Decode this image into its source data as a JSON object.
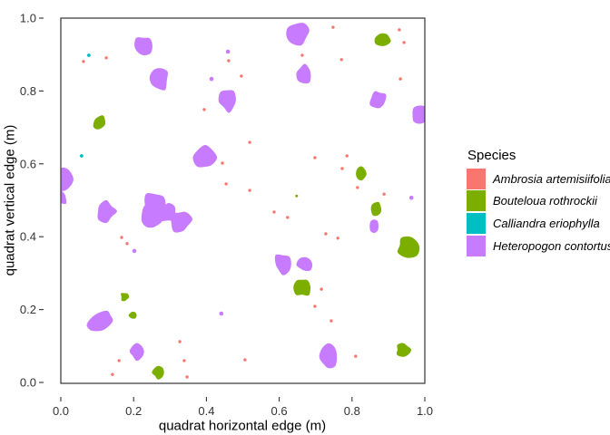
{
  "chart_data": {
    "type": "scatter",
    "title": "",
    "xlabel": "quadrat horizontal edge (m)",
    "ylabel": "quadrat vertical edge (m)",
    "xlim": [
      0,
      1
    ],
    "ylim": [
      0,
      1
    ],
    "grid": false,
    "legend_position": "right",
    "legend": {
      "title": "Species"
    },
    "axes": {
      "x_tick_values": [
        0.0,
        0.2,
        0.4,
        0.6,
        0.8,
        1.0
      ],
      "x_tick_labels": [
        "0.0",
        "0.2",
        "0.4",
        "0.6",
        "0.8",
        "1.0"
      ],
      "y_tick_values": [
        0.0,
        0.2,
        0.4,
        0.6,
        0.8,
        1.0
      ],
      "y_tick_labels": [
        "0.0",
        "0.2",
        "0.4",
        "0.6",
        "0.8",
        "1.0"
      ]
    },
    "species": [
      {
        "name": "Ambrosia artemisiifolia",
        "color": "#F8766D",
        "point_radius": 1.7,
        "points": [
          [
            0.062,
            0.881
          ],
          [
            0.125,
            0.891
          ],
          [
            0.461,
            0.883
          ],
          [
            0.496,
            0.841
          ],
          [
            0.748,
            0.975
          ],
          [
            0.93,
            0.968
          ],
          [
            0.943,
            0.933
          ],
          [
            0.663,
            0.898
          ],
          [
            0.771,
            0.886
          ],
          [
            0.933,
            0.833
          ],
          [
            0.394,
            0.749
          ],
          [
            0.519,
            0.659
          ],
          [
            0.444,
            0.602
          ],
          [
            0.454,
            0.545
          ],
          [
            0.698,
            0.617
          ],
          [
            0.786,
            0.622
          ],
          [
            0.773,
            0.587
          ],
          [
            0.815,
            0.535
          ],
          [
            0.519,
            0.527
          ],
          [
            0.888,
            0.517
          ],
          [
            0.586,
            0.468
          ],
          [
            0.623,
            0.453
          ],
          [
            0.728,
            0.408
          ],
          [
            0.761,
            0.396
          ],
          [
            0.167,
            0.398
          ],
          [
            0.182,
            0.381
          ],
          [
            0.716,
            0.256
          ],
          [
            0.698,
            0.209
          ],
          [
            0.743,
            0.169
          ],
          [
            0.327,
            0.112
          ],
          [
            0.16,
            0.06
          ],
          [
            0.339,
            0.06
          ],
          [
            0.506,
            0.062
          ],
          [
            0.81,
            0.072
          ],
          [
            0.142,
            0.022
          ],
          [
            0.347,
            0.015
          ]
        ],
        "patches": []
      },
      {
        "name": "Bouteloua rothrockii",
        "color": "#7CAE00",
        "point_radius": 1.5,
        "points": [
          [
            0.648,
            0.512
          ]
        ],
        "patches": [
          [
            0.885,
            0.94,
            0.021,
            0.016,
            -25,
            201
          ],
          [
            0.107,
            0.714,
            0.016,
            0.025,
            25,
            202
          ],
          [
            0.825,
            0.572,
            0.014,
            0.019,
            0,
            203
          ],
          [
            0.866,
            0.478,
            0.015,
            0.019,
            -15,
            204
          ],
          [
            0.955,
            0.373,
            0.031,
            0.026,
            10,
            205
          ],
          [
            0.663,
            0.261,
            0.021,
            0.025,
            0,
            206
          ],
          [
            0.175,
            0.234,
            0.011,
            0.012,
            0,
            207
          ],
          [
            0.197,
            0.184,
            0.011,
            0.011,
            0,
            208
          ],
          [
            0.267,
            0.027,
            0.015,
            0.016,
            0,
            209
          ],
          [
            0.94,
            0.09,
            0.019,
            0.016,
            0,
            210
          ]
        ]
      },
      {
        "name": "Calliandra eriophylla",
        "color": "#00BFC4",
        "point_radius": 1.9,
        "points": [
          [
            0.077,
            0.898
          ],
          [
            0.057,
            0.622
          ]
        ],
        "patches": []
      },
      {
        "name": "Heteropogon contortus",
        "color": "#C77CFF",
        "point_radius": 2.3,
        "points": [
          [
            0.459,
            0.908
          ],
          [
            0.414,
            0.833
          ],
          [
            0.202,
            0.361
          ],
          [
            0.441,
            0.189
          ],
          [
            0.963,
            0.507
          ]
        ],
        "patches": [
          [
            0.227,
            0.925,
            0.025,
            0.027,
            0,
            101
          ],
          [
            0.269,
            0.833,
            0.027,
            0.032,
            10,
            102
          ],
          [
            0.459,
            0.774,
            0.024,
            0.031,
            -5,
            103
          ],
          [
            0.87,
            0.776,
            0.021,
            0.026,
            20,
            104
          ],
          [
            0.985,
            0.734,
            0.022,
            0.025,
            0,
            105
          ],
          [
            0.668,
            0.846,
            0.02,
            0.025,
            5,
            106
          ],
          [
            0.651,
            0.96,
            0.032,
            0.029,
            -15,
            107
          ],
          [
            0.397,
            0.617,
            0.029,
            0.03,
            0,
            108
          ],
          [
            0.005,
            0.557,
            0.025,
            0.035,
            0,
            109
          ],
          [
            0.0,
            0.508,
            0.017,
            0.02,
            0,
            110
          ],
          [
            0.125,
            0.47,
            0.026,
            0.027,
            0,
            111
          ],
          [
            0.245,
            0.455,
            0.03,
            0.035,
            15,
            112
          ],
          [
            0.262,
            0.49,
            0.032,
            0.032,
            0,
            113
          ],
          [
            0.295,
            0.465,
            0.022,
            0.025,
            0,
            114
          ],
          [
            0.329,
            0.443,
            0.027,
            0.03,
            -10,
            115
          ],
          [
            0.861,
            0.43,
            0.014,
            0.019,
            0,
            116
          ],
          [
            0.611,
            0.326,
            0.024,
            0.027,
            0,
            117
          ],
          [
            0.671,
            0.323,
            0.02,
            0.021,
            0,
            118
          ],
          [
            0.107,
            0.164,
            0.042,
            0.022,
            -33,
            119
          ],
          [
            0.209,
            0.085,
            0.021,
            0.021,
            0,
            120
          ],
          [
            0.736,
            0.07,
            0.022,
            0.031,
            0,
            121
          ]
        ]
      }
    ],
    "style": {
      "panel_border_color": "#333333",
      "tick_color": "#333333",
      "tick_label_color": "#333333",
      "background": "#ffffff"
    }
  }
}
